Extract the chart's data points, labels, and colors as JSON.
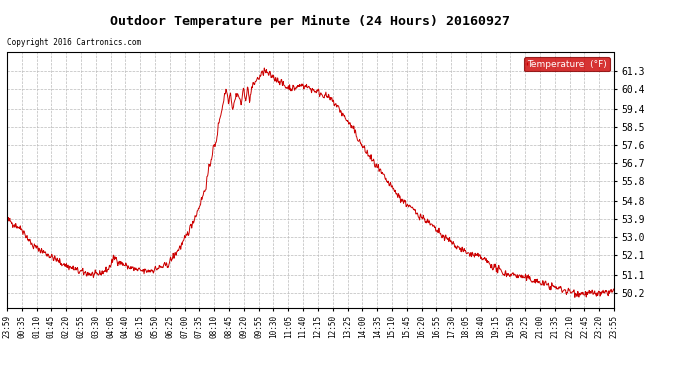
{
  "title": "Outdoor Temperature per Minute (24 Hours) 20160927",
  "copyright_text": "Copyright 2016 Cartronics.com",
  "legend_label": "Temperature  (°F)",
  "line_color": "#cc0000",
  "legend_bg": "#cc0000",
  "legend_text_color": "#ffffff",
  "background_color": "#ffffff",
  "grid_color": "#bbbbbb",
  "title_color": "#000000",
  "ylabel_right_values": [
    50.2,
    51.1,
    52.1,
    53.0,
    53.9,
    54.8,
    55.8,
    56.7,
    57.6,
    58.5,
    59.4,
    60.4,
    61.3
  ],
  "x_tick_labels": [
    "23:59",
    "00:35",
    "01:10",
    "01:45",
    "02:20",
    "02:55",
    "03:30",
    "04:05",
    "04:40",
    "05:15",
    "05:50",
    "06:25",
    "07:00",
    "07:35",
    "08:10",
    "08:45",
    "09:20",
    "09:55",
    "10:30",
    "11:05",
    "11:40",
    "12:15",
    "12:50",
    "13:25",
    "14:00",
    "14:35",
    "15:10",
    "15:45",
    "16:20",
    "16:55",
    "17:30",
    "18:05",
    "18:40",
    "19:15",
    "19:50",
    "20:25",
    "21:00",
    "21:35",
    "22:10",
    "22:45",
    "23:20",
    "23:55"
  ],
  "ylim_min": 49.5,
  "ylim_max": 62.2,
  "keypoints": [
    [
      0,
      53.9
    ],
    [
      36,
      53.4
    ],
    [
      60,
      52.6
    ],
    [
      100,
      52.1
    ],
    [
      130,
      51.7
    ],
    [
      170,
      51.3
    ],
    [
      210,
      51.1
    ],
    [
      240,
      51.4
    ],
    [
      255,
      52.0
    ],
    [
      270,
      51.7
    ],
    [
      290,
      51.5
    ],
    [
      310,
      51.35
    ],
    [
      330,
      51.3
    ],
    [
      350,
      51.4
    ],
    [
      380,
      51.6
    ],
    [
      420,
      52.8
    ],
    [
      450,
      54.2
    ],
    [
      470,
      55.4
    ],
    [
      480,
      56.5
    ],
    [
      490,
      57.5
    ],
    [
      495,
      57.6
    ],
    [
      500,
      58.4
    ],
    [
      505,
      59.0
    ],
    [
      510,
      59.4
    ],
    [
      515,
      60.0
    ],
    [
      520,
      60.4
    ],
    [
      525,
      59.8
    ],
    [
      530,
      60.2
    ],
    [
      535,
      59.4
    ],
    [
      540,
      59.8
    ],
    [
      545,
      60.2
    ],
    [
      550,
      60.0
    ],
    [
      555,
      59.6
    ],
    [
      560,
      60.4
    ],
    [
      565,
      59.8
    ],
    [
      570,
      60.5
    ],
    [
      575,
      59.8
    ],
    [
      580,
      60.4
    ],
    [
      590,
      60.8
    ],
    [
      600,
      61.0
    ],
    [
      610,
      61.3
    ],
    [
      620,
      61.1
    ],
    [
      630,
      61.0
    ],
    [
      645,
      60.8
    ],
    [
      660,
      60.5
    ],
    [
      680,
      60.4
    ],
    [
      700,
      60.6
    ],
    [
      720,
      60.4
    ],
    [
      740,
      60.2
    ],
    [
      760,
      60.0
    ],
    [
      780,
      59.6
    ],
    [
      800,
      59.0
    ],
    [
      820,
      58.4
    ],
    [
      840,
      57.6
    ],
    [
      870,
      56.7
    ],
    [
      900,
      55.8
    ],
    [
      930,
      55.0
    ],
    [
      960,
      54.4
    ],
    [
      990,
      53.9
    ],
    [
      1010,
      53.5
    ],
    [
      1030,
      53.1
    ],
    [
      1050,
      52.8
    ],
    [
      1070,
      52.5
    ],
    [
      1090,
      52.2
    ],
    [
      1110,
      52.1
    ],
    [
      1130,
      51.9
    ],
    [
      1155,
      51.5
    ],
    [
      1180,
      51.2
    ],
    [
      1210,
      51.1
    ],
    [
      1240,
      50.9
    ],
    [
      1270,
      50.7
    ],
    [
      1300,
      50.5
    ],
    [
      1330,
      50.3
    ],
    [
      1360,
      50.2
    ],
    [
      1390,
      50.2
    ],
    [
      1415,
      50.2
    ],
    [
      1430,
      50.3
    ],
    [
      1439,
      50.3
    ]
  ]
}
